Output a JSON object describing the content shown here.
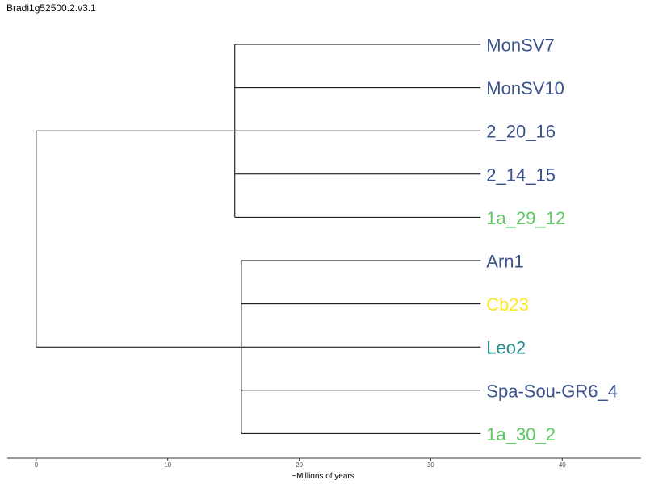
{
  "chart_data": {
    "type": "dendrogram",
    "title": "Bradi1g52500.2.v3.1",
    "xlabel": "~Millions of years",
    "xlim": [
      -2.2,
      46
    ],
    "x_ticks": [
      0,
      10,
      20,
      30,
      40
    ],
    "tips": [
      {
        "label": "MonSV7",
        "color": "#3B528B"
      },
      {
        "label": "MonSV10",
        "color": "#3B528B"
      },
      {
        "label": "2_20_16",
        "color": "#3B528B"
      },
      {
        "label": "2_14_15",
        "color": "#3B528B"
      },
      {
        "label": "1a_29_12",
        "color": "#5DC863"
      },
      {
        "label": "Arn1",
        "color": "#3B528B"
      },
      {
        "label": "Cb23",
        "color": "#FDE725"
      },
      {
        "label": "Leo2",
        "color": "#21908C"
      },
      {
        "label": "Spa-Sou-GR6_4",
        "color": "#3B528B"
      },
      {
        "label": "1a_30_2",
        "color": "#5DC863"
      }
    ],
    "tip_x": 33.8,
    "root_x": 0,
    "clades": [
      {
        "node_x": 15.1,
        "members": [
          0,
          1,
          2,
          3,
          4
        ]
      },
      {
        "node_x": 15.6,
        "members": [
          5,
          6,
          7,
          8,
          9
        ]
      }
    ]
  }
}
